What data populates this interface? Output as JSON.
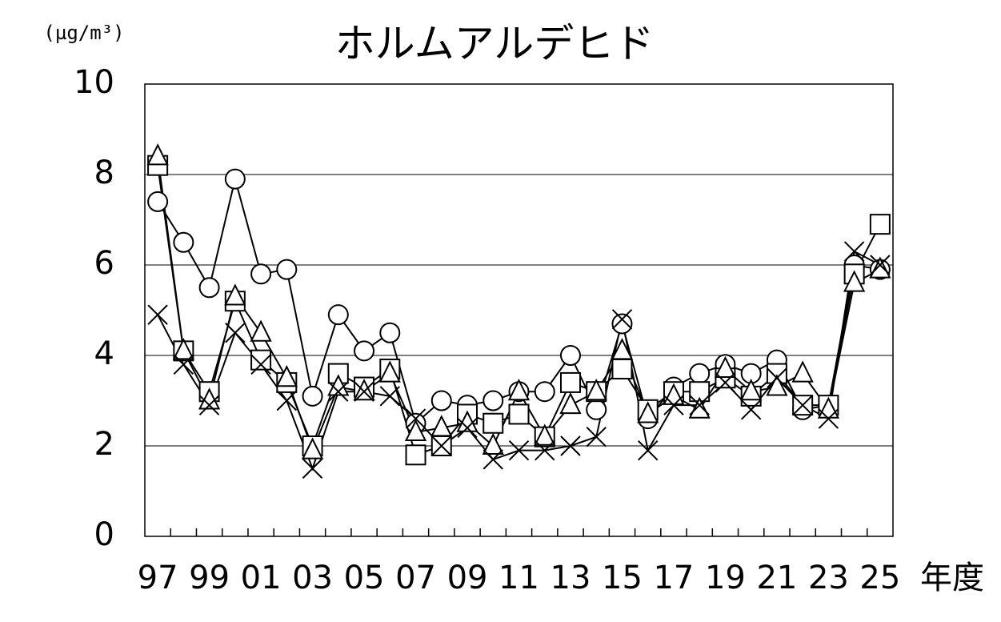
{
  "chart_data": {
    "type": "line",
    "title": "ホルムアルデヒド",
    "y_label": "(µg/m³)",
    "x_label": "年度",
    "categories": [
      "97",
      null,
      "99",
      null,
      "01",
      null,
      "03",
      null,
      "05",
      null,
      "07",
      null,
      "09",
      null,
      "11",
      null,
      "13",
      null,
      "15",
      null,
      "17",
      null,
      "19",
      null,
      "21",
      null,
      "23",
      null,
      "25"
    ],
    "series": [
      {
        "marker": "circle",
        "color": "#000000",
        "values": [
          7.4,
          6.5,
          5.5,
          7.9,
          5.8,
          5.9,
          3.1,
          4.9,
          4.1,
          4.5,
          2.5,
          3.0,
          2.9,
          3.0,
          3.2,
          3.2,
          4.0,
          2.8,
          4.7,
          2.6,
          3.3,
          3.6,
          3.8,
          3.6,
          3.9,
          2.8,
          2.9,
          6.0,
          5.9
        ]
      },
      {
        "marker": "square",
        "color": "#000000",
        "values": [
          8.2,
          4.1,
          3.2,
          5.2,
          3.9,
          3.4,
          2.0,
          3.6,
          3.3,
          3.7,
          1.8,
          2.0,
          2.7,
          2.5,
          2.7,
          2.2,
          3.4,
          3.2,
          3.7,
          2.8,
          3.2,
          3.2,
          3.5,
          3.1,
          3.6,
          2.9,
          2.9,
          5.8,
          6.9
        ]
      },
      {
        "marker": "triangle",
        "color": "#000000",
        "values": [
          8.4,
          4.1,
          3.0,
          5.3,
          4.5,
          3.5,
          1.9,
          3.3,
          3.2,
          3.6,
          2.3,
          2.4,
          2.5,
          2.0,
          3.2,
          2.2,
          2.9,
          3.2,
          4.1,
          2.7,
          3.1,
          2.8,
          3.7,
          3.2,
          3.3,
          3.6,
          2.8,
          5.6,
          5.9
        ]
      },
      {
        "marker": "cross",
        "color": "#000000",
        "values": [
          4.9,
          3.8,
          2.9,
          4.5,
          3.8,
          3.0,
          1.5,
          3.2,
          3.2,
          3.1,
          2.6,
          2.0,
          2.4,
          1.7,
          1.9,
          1.9,
          2.0,
          2.2,
          4.8,
          1.9,
          2.9,
          2.9,
          3.4,
          2.8,
          3.5,
          2.9,
          2.6,
          6.3,
          6.0
        ]
      }
    ],
    "ylim": [
      0,
      10
    ],
    "yticks": [
      0,
      2,
      4,
      6,
      8,
      10
    ],
    "grid": true
  }
}
